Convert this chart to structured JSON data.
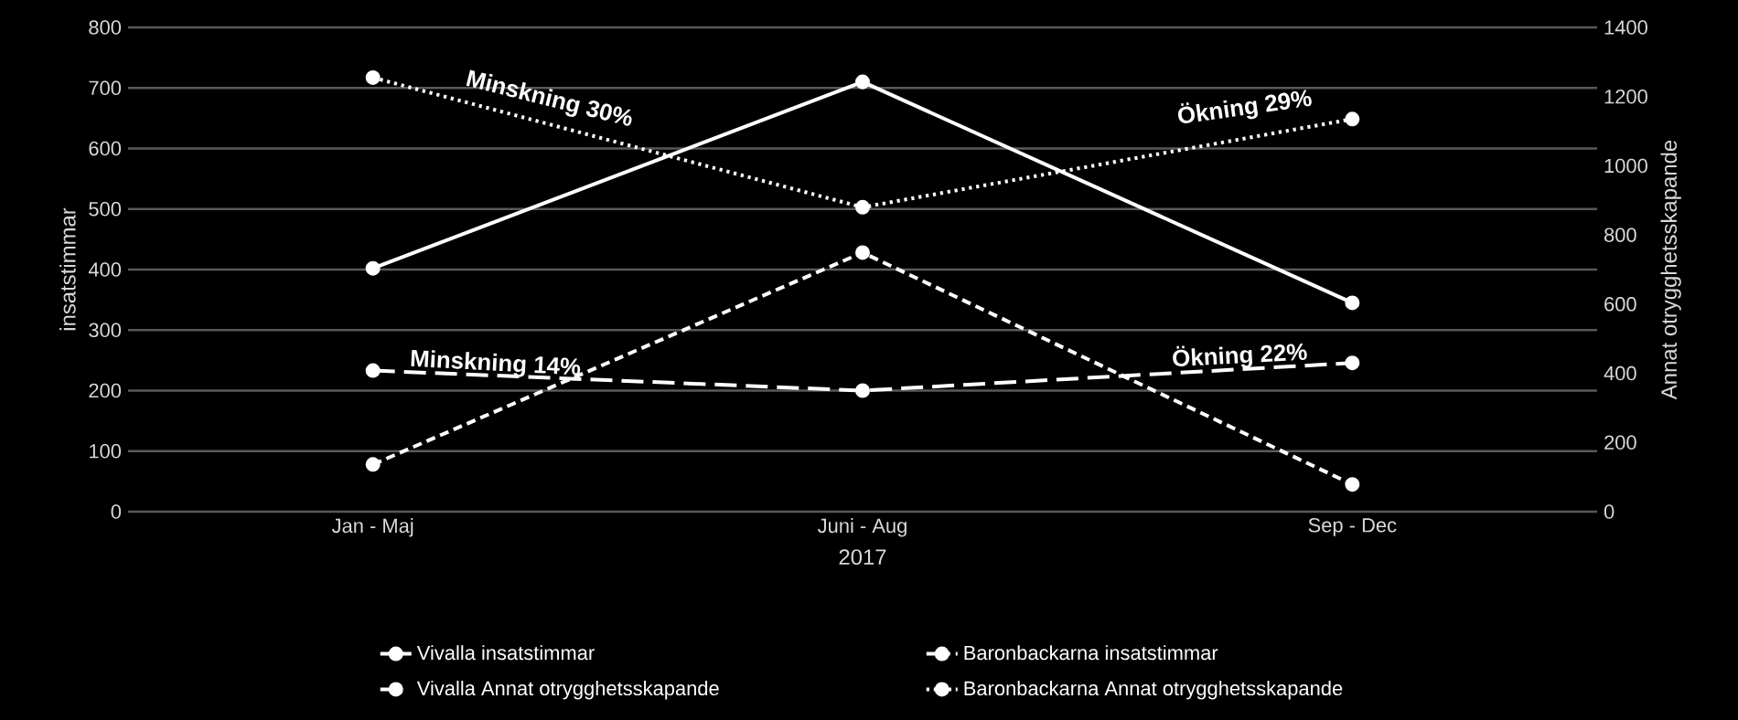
{
  "chart_data": {
    "type": "line",
    "xlabel": "2017",
    "ylabel": "insatstimmar",
    "y2label": "Annat otrygghetsskapande",
    "categories": [
      "Jan - Maj",
      "Juni - Aug",
      "Sep - Dec"
    ],
    "series": [
      {
        "name": "Vivalla insatstimmar",
        "color": "#ffffff",
        "line_style": "solid",
        "values": [
          402,
          710,
          345
        ]
      },
      {
        "name": "Baronbackarna insatstimmar",
        "color": "#ffffff",
        "line_style": "dashed",
        "values": [
          78,
          428,
          45
        ]
      },
      {
        "name": "Vivalla Annat otrygghetsskapande",
        "color": "#ffffff",
        "line_style": "dashed",
        "axis": "y2",
        "values": [
          408,
          350,
          430
        ]
      },
      {
        "name": "Baronbackarna Annat otrygghetsskapande",
        "color": "#ffffff",
        "line_style": "dotted",
        "axis": "y2",
        "values": [
          1255,
          880,
          1135
        ]
      }
    ],
    "ylim": [
      0,
      800
    ],
    "yticks": [
      0,
      100,
      200,
      300,
      400,
      500,
      600,
      700,
      800
    ],
    "y2lim": [
      0,
      1400
    ],
    "y2ticks": [
      0,
      200,
      400,
      600,
      800,
      1000,
      1200,
      1400
    ],
    "annotations": [
      "Minskning 30%",
      "Ökning 29%",
      "Minskning 14%",
      "Ökning 22%"
    ],
    "grid": "y",
    "legend": "bottom",
    "marker": "circle"
  }
}
